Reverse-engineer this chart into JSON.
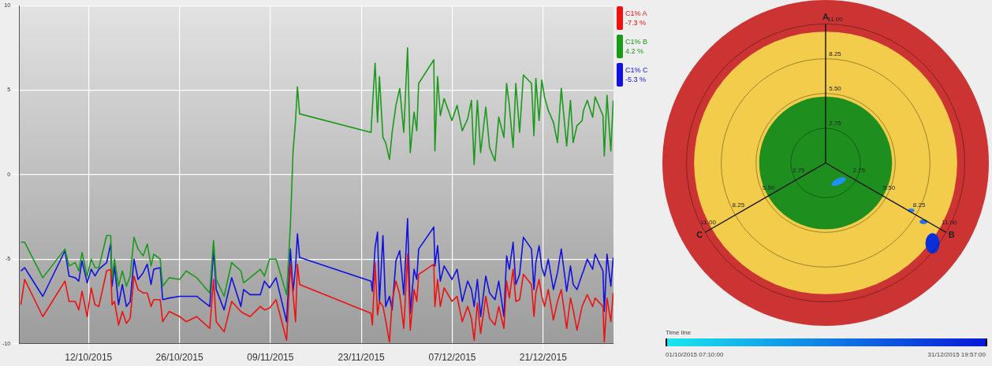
{
  "chart_data": [
    {
      "type": "line",
      "x": [
        "2015-10-01T14:00",
        "2015-10-02T04:00",
        "2015-10-04T23:00",
        "2015-10-08T09:00",
        "2015-10-09T00:00",
        "2015-10-09T23:00",
        "2015-10-10T12:00",
        "2015-10-11T00:00",
        "2015-10-11T19:00",
        "2015-10-12T10:00",
        "2015-10-13T00:00",
        "2015-10-13T14:00",
        "2015-10-14T19:00",
        "2015-10-15T10:00",
        "2015-10-15T15:00",
        "2015-10-16T00:00",
        "2015-10-16T15:00",
        "2015-10-17T05:00",
        "2015-10-17T20:00",
        "2015-10-18T10:00",
        "2015-10-19T00:00",
        "2015-10-19T15:00",
        "2015-10-20T10:00",
        "2015-10-21T01:00",
        "2015-10-21T15:00",
        "2015-10-22T01:00",
        "2015-10-23T01:00",
        "2015-10-23T10:00",
        "2015-10-24T10:00",
        "2015-10-26T01:00",
        "2015-10-27T01:00",
        "2015-10-28T16:00",
        "2015-10-30T16:00",
        "2015-10-31T06:00",
        "2015-10-31T16:00",
        "2015-11-01T21:00",
        "2015-11-03T01:00",
        "2015-11-04T11:00",
        "2015-11-04T21:00",
        "2015-11-05T21:00",
        "2015-11-07T11:00",
        "2015-11-08T02:00",
        "2015-11-08T21:00",
        "2015-11-09T21:00",
        "2015-11-11T12:00",
        "2015-11-12T02:00",
        "2015-11-12T12:00",
        "2015-11-12T21:00",
        "2015-11-13T04:00",
        "2015-11-13T12:00",
        "2015-11-24T12:00",
        "2015-11-24T17:00",
        "2015-11-25T03:00",
        "2015-11-25T12:00",
        "2015-11-25T19:00",
        "2015-11-26T08:00",
        "2015-11-26T18:00",
        "2015-11-27T08:00",
        "2015-11-27T18:00",
        "2015-11-28T08:00",
        "2015-11-28T22:00",
        "2015-11-29T13:00",
        "2015-11-30T03:00",
        "2015-11-30T13:00",
        "2015-12-01T03:00",
        "2015-12-01T13:00",
        "2015-12-01T20:00",
        "2015-12-04T04:00",
        "2015-12-04T08:00",
        "2015-12-04T18:00",
        "2015-12-05T04:00",
        "2015-12-05T18:00",
        "2015-12-06T23:00",
        "2015-12-07T18:00",
        "2015-12-08T13:00",
        "2015-12-09T09:00",
        "2015-12-09T23:00",
        "2015-12-10T09:00",
        "2015-12-10T21:00",
        "2015-12-11T09:00",
        "2015-12-12T04:00",
        "2015-12-12T18:00",
        "2015-12-13T14:00",
        "2015-12-14T04:00",
        "2015-12-14T23:00",
        "2015-12-15T09:00",
        "2015-12-15T19:00",
        "2015-12-16T09:00",
        "2015-12-16T19:00",
        "2015-12-17T09:00",
        "2015-12-17T23:00",
        "2015-12-19T05:00",
        "2015-12-19T14:00",
        "2015-12-19T21:00",
        "2015-12-20T09:00",
        "2015-12-20T19:00",
        "2015-12-21T05:00",
        "2015-12-21T19:00",
        "2015-12-22T14:00",
        "2015-12-23T05:00",
        "2015-12-23T19:00",
        "2015-12-24T15:00",
        "2015-12-25T05:00",
        "2015-12-25T15:00",
        "2015-12-26T05:00",
        "2015-12-27T00:00",
        "2015-12-27T05:00",
        "2015-12-27T19:00",
        "2015-12-28T15:00",
        "2015-12-29T00:00",
        "2015-12-30T05:00",
        "2015-12-30T10:00",
        "2015-12-30T20:00",
        "2015-12-31T10:00",
        "2015-12-31T19:00"
      ],
      "series": [
        {
          "name": "C1% A -7.3 %",
          "color": "#ee1111",
          "values": [
            -7.7,
            -6.2,
            -8.4,
            -6.3,
            -7.5,
            -7.5,
            -8.0,
            -6.9,
            -8.4,
            -6.7,
            -7.7,
            -7.8,
            -5.7,
            -5.6,
            -7.7,
            -7.5,
            -8.9,
            -8.1,
            -8.8,
            -8.5,
            -6.0,
            -6.8,
            -7.0,
            -7.0,
            -7.8,
            -7.4,
            -7.4,
            -8.7,
            -8.1,
            -8.4,
            -8.7,
            -8.4,
            -9.1,
            -6.2,
            -8.7,
            -9.3,
            -7.5,
            -8.1,
            -8.2,
            -8.4,
            -7.8,
            -8.0,
            -7.9,
            -7.4,
            -9.8,
            -5.3,
            -7.1,
            -8.7,
            -5.3,
            -6.5,
            -8.2,
            -8.9,
            -5.2,
            -8.3,
            -7.5,
            -7.8,
            -8.6,
            -9.9,
            -7.5,
            -6.3,
            -7.1,
            -9.1,
            -4.7,
            -9.2,
            -6.8,
            -7.5,
            -5.9,
            -5.3,
            -7.8,
            -6.2,
            -7.8,
            -6.7,
            -7.5,
            -7.2,
            -8.7,
            -7.8,
            -8.5,
            -9.8,
            -7.6,
            -9.4,
            -7.2,
            -8.5,
            -8.9,
            -7.8,
            -9.1,
            -6.3,
            -7.3,
            -5.6,
            -7.5,
            -7.4,
            -5.9,
            -6.5,
            -8.4,
            -7.0,
            -6.2,
            -7.2,
            -7.8,
            -6.8,
            -8.6,
            -7.5,
            -6.8,
            -9.1,
            -7.3,
            -8.0,
            -9.2,
            -7.8,
            -7.6,
            -7.1,
            -7.8,
            -7.3,
            -7.8,
            -9.9,
            -7.3,
            -8.7,
            -7.0
          ]
        },
        {
          "name": "C1% B 4.2 %",
          "color": "#1a9a1a",
          "values": [
            -4.0,
            -4.0,
            -6.1,
            -4.4,
            -5.4,
            -5.2,
            -5.7,
            -4.6,
            -6.0,
            -5.0,
            -5.5,
            -5.5,
            -3.6,
            -3.6,
            -6.2,
            -5.0,
            -6.6,
            -5.7,
            -6.6,
            -6.0,
            -3.7,
            -4.4,
            -4.8,
            -4.1,
            -5.4,
            -4.7,
            -5.0,
            -6.6,
            -6.1,
            -6.2,
            -5.7,
            -6.1,
            -7.0,
            -3.9,
            -6.2,
            -7.2,
            -5.2,
            -5.7,
            -6.4,
            -6.1,
            -5.6,
            -6.0,
            -5.0,
            -5.0,
            -7.1,
            -3.0,
            1.4,
            3.2,
            5.2,
            3.6,
            2.5,
            4.0,
            6.6,
            3.1,
            5.8,
            2.2,
            1.9,
            0.9,
            2.5,
            4.1,
            5.1,
            2.5,
            7.5,
            1.3,
            3.7,
            2.6,
            5.4,
            6.8,
            1.4,
            5.8,
            3.5,
            4.5,
            3.2,
            4.1,
            2.6,
            3.3,
            4.4,
            0.6,
            4.4,
            1.3,
            4.0,
            1.6,
            0.8,
            3.4,
            2.2,
            5.4,
            4.1,
            1.6,
            5.4,
            2.5,
            5.9,
            5.4,
            2.3,
            5.7,
            3.2,
            5.6,
            4.6,
            3.8,
            3.1,
            1.9,
            5.1,
            1.7,
            4.4,
            1.9,
            2.9,
            3.2,
            3.8,
            4.4,
            3.4,
            4.6,
            3.5,
            1.1,
            4.7,
            1.4,
            4.4
          ]
        },
        {
          "name": "C1% C -5.3 %",
          "color": "#1111e0",
          "values": [
            -5.7,
            -5.5,
            -7.2,
            -4.5,
            -6.0,
            -6.1,
            -6.3,
            -5.1,
            -6.4,
            -5.6,
            -6.0,
            -5.6,
            -5.2,
            -4.1,
            -6.6,
            -5.4,
            -7.7,
            -6.5,
            -7.8,
            -7.5,
            -5.0,
            -6.2,
            -5.8,
            -5.3,
            -6.5,
            -5.6,
            -5.5,
            -7.4,
            -7.3,
            -7.2,
            -7.2,
            -7.2,
            -7.8,
            -4.4,
            -6.8,
            -8.0,
            -6.1,
            -7.8,
            -6.8,
            -7.1,
            -7.1,
            -6.3,
            -6.7,
            -6.1,
            -8.7,
            -4.4,
            -6.9,
            -5.5,
            -3.5,
            -4.9,
            -6.3,
            -6.9,
            -4.3,
            -3.4,
            -7.5,
            -3.6,
            -7.8,
            -7.2,
            -8.0,
            -5.1,
            -4.5,
            -7.1,
            -2.6,
            -8.2,
            -5.6,
            -6.2,
            -4.4,
            -3.1,
            -5.4,
            -4.2,
            -6.3,
            -5.4,
            -6.2,
            -5.6,
            -7.5,
            -6.3,
            -6.8,
            -7.8,
            -6.2,
            -8.4,
            -6.0,
            -7.0,
            -7.4,
            -6.3,
            -8.4,
            -4.8,
            -5.6,
            -4.0,
            -6.5,
            -5.9,
            -3.7,
            -4.4,
            -6.8,
            -5.2,
            -4.2,
            -5.5,
            -6.0,
            -5.0,
            -6.8,
            -5.8,
            -4.4,
            -6.9,
            -5.4,
            -6.5,
            -6.8,
            -5.9,
            -5.7,
            -5.0,
            -5.6,
            -4.7,
            -5.7,
            -8.1,
            -4.7,
            -6.6,
            -4.9
          ]
        }
      ],
      "xlim": [
        "2015-10-01T07:10",
        "2015-12-31T19:57"
      ],
      "xticks": [
        {
          "value": "2015-10-12",
          "label": "12/10/2015"
        },
        {
          "value": "2015-10-26",
          "label": "26/10/2015"
        },
        {
          "value": "2015-11-09",
          "label": "09/11/2015"
        },
        {
          "value": "2015-11-23",
          "label": "23/11/2015"
        },
        {
          "value": "2015-12-07",
          "label": "07/12/2015"
        },
        {
          "value": "2015-12-21",
          "label": "21/12/2015"
        }
      ],
      "ylim": [
        -10,
        10
      ],
      "yticks": [
        -10,
        -5,
        0,
        5,
        10
      ],
      "grid": true,
      "legend": "right"
    },
    {
      "type": "radar",
      "categories": [
        "A",
        "B",
        "C"
      ],
      "ylim": [
        0,
        12.9
      ],
      "yticks": [
        {
          "value": 2.75,
          "label": "2.75"
        },
        {
          "value": 5.5,
          "label": "5.50"
        },
        {
          "value": 8.25,
          "label": "8.25"
        },
        {
          "value": 11,
          "label": "11.00"
        }
      ],
      "grid": true,
      "annotations": [
        "Time line",
        "01/10/2015 07:10:00",
        "31/12/2015 19:57:00"
      ]
    }
  ]
}
